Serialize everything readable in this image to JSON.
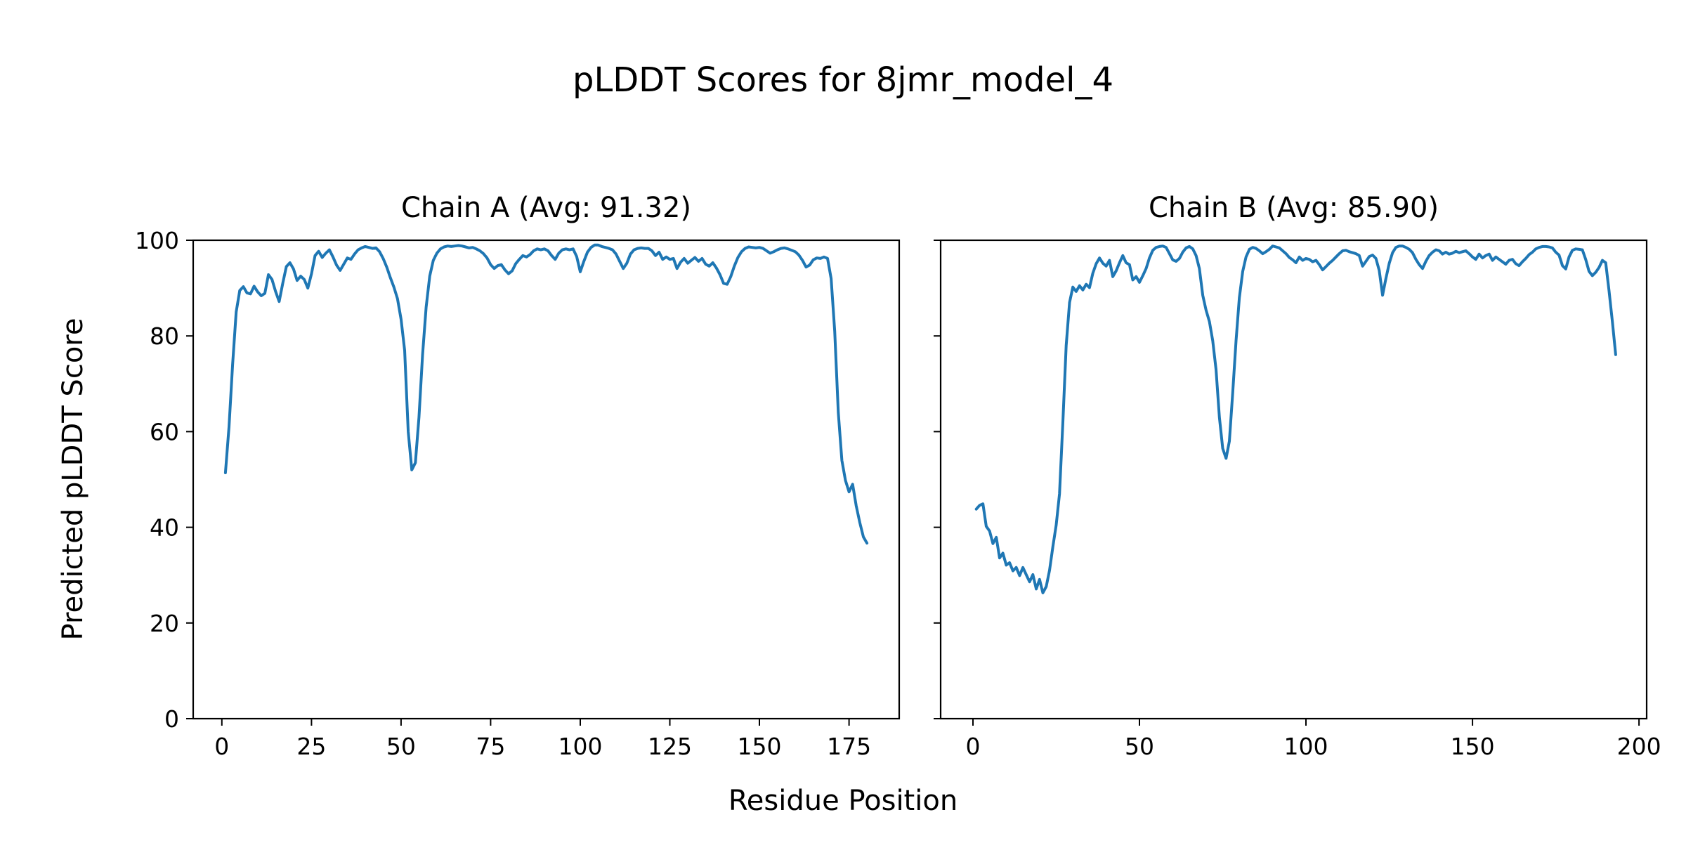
{
  "figure": {
    "title": "pLDDT Scores for 8jmr_model_4",
    "xlabel": "Residue Position",
    "ylabel": "Predicted pLDDT Score",
    "line_color": "#1f77b4",
    "spine_color": "#000000",
    "background": "#ffffff"
  },
  "chart_data": [
    {
      "type": "line",
      "title": "Chain A (Avg: 91.32)",
      "chain": "A",
      "avg": 91.32,
      "x_start": 1,
      "xlim": [
        -8,
        189
      ],
      "ylim": [
        0,
        100
      ],
      "xticks": [
        0,
        25,
        50,
        75,
        100,
        125,
        150,
        175
      ],
      "yticks": [
        0,
        20,
        40,
        60,
        80,
        100
      ],
      "show_ytick_labels": true,
      "grid": false,
      "values": [
        51.4,
        61,
        74,
        85,
        89.5,
        90.3,
        89,
        88.8,
        90.4,
        89.2,
        88.4,
        88.9,
        92.8,
        91.8,
        89.3,
        87.2,
        91,
        94.5,
        95.3,
        94,
        91.6,
        92.5,
        91.8,
        90,
        93,
        96.8,
        97.7,
        96.4,
        97.3,
        98,
        96.5,
        94.8,
        93.7,
        95,
        96.3,
        96,
        97.1,
        98,
        98.4,
        98.7,
        98.5,
        98.3,
        98.4,
        97.6,
        96.2,
        94.4,
        92.2,
        90.2,
        87.8,
        83.5,
        77,
        60,
        52,
        53.5,
        63,
        76,
        86,
        92.5,
        95.8,
        97.3,
        98.2,
        98.6,
        98.8,
        98.7,
        98.8,
        98.9,
        98.8,
        98.6,
        98.4,
        98.5,
        98.2,
        97.8,
        97.2,
        96.3,
        94.9,
        94.1,
        94.7,
        94.9,
        93.8,
        93,
        93.6,
        95.1,
        96,
        96.8,
        96.5,
        97,
        97.8,
        98.2,
        98,
        98.2,
        97.8,
        96.8,
        96,
        97.3,
        98,
        98.2,
        98,
        98.2,
        96.6,
        93.4,
        95.6,
        97.5,
        98.5,
        99,
        99,
        98.7,
        98.5,
        98.3,
        98,
        97.1,
        95.6,
        94.1,
        95.2,
        97.1,
        98,
        98.3,
        98.4,
        98.3,
        98.3,
        97.8,
        96.8,
        97.5,
        96,
        96.5,
        96,
        96.2,
        94.1,
        95.4,
        96.2,
        95.2,
        95.8,
        96.4,
        95.6,
        96.2,
        95,
        94.6,
        95.3,
        94.2,
        92.8,
        91,
        90.8,
        92.4,
        94.6,
        96.4,
        97.6,
        98.3,
        98.6,
        98.5,
        98.4,
        98.5,
        98.3,
        97.8,
        97.3,
        97.6,
        98,
        98.3,
        98.4,
        98.2,
        97.9,
        97.6,
        96.9,
        95.8,
        94.4,
        94.8,
        95.9,
        96.3,
        96.2,
        96.5,
        96.2,
        92,
        81,
        64,
        54,
        49.8,
        47.4,
        49,
        44.5,
        41,
        38,
        36.7
      ]
    },
    {
      "type": "line",
      "title": "Chain B (Avg: 85.90)",
      "chain": "B",
      "avg": 85.9,
      "x_start": 1,
      "xlim": [
        -9.7,
        202.3
      ],
      "ylim": [
        0,
        100
      ],
      "xticks": [
        0,
        50,
        100,
        150,
        200
      ],
      "yticks": [
        0,
        20,
        40,
        60,
        80,
        100
      ],
      "show_ytick_labels": false,
      "grid": false,
      "values": [
        43.8,
        44.6,
        44.9,
        40.2,
        39.2,
        36.6,
        37.9,
        33.6,
        34.6,
        32.1,
        32.6,
        30.9,
        31.6,
        29.9,
        31.6,
        30.1,
        28.6,
        30.1,
        27.1,
        29.1,
        26.3,
        27.6,
        31,
        36,
        40.5,
        47,
        62,
        78,
        87,
        90.2,
        89.3,
        90.5,
        89.6,
        90.8,
        90.1,
        93.1,
        95.1,
        96.3,
        95.2,
        94.6,
        95.8,
        92.4,
        93.6,
        95.3,
        96.8,
        95.3,
        94.9,
        91.7,
        92.4,
        91.2,
        92.6,
        94.1,
        96.3,
        97.9,
        98.5,
        98.7,
        98.8,
        98.5,
        97.2,
        95.9,
        95.6,
        96.2,
        97.5,
        98.4,
        98.7,
        98.2,
        96.8,
        94.1,
        88.5,
        85.4,
        83,
        79,
        73,
        63,
        56.5,
        54.4,
        58,
        68,
        79,
        88,
        93.5,
        96.5,
        98.1,
        98.5,
        98.3,
        97.8,
        97.2,
        97.6,
        98.1,
        98.8,
        98.6,
        98.4,
        97.8,
        97.2,
        96.4,
        95.9,
        95.3,
        96.5,
        95.8,
        96.2,
        96,
        95.5,
        95.8,
        94.9,
        93.8,
        94.5,
        95.2,
        95.8,
        96.5,
        97.2,
        97.8,
        97.9,
        97.6,
        97.4,
        97.2,
        96.8,
        94.6,
        95.6,
        96.6,
        96.9,
        96.2,
        93.7,
        88.5,
        92,
        95.2,
        97.4,
        98.5,
        98.8,
        98.8,
        98.5,
        98.1,
        97.4,
        96,
        94.9,
        94.1,
        95.6,
        96.8,
        97.5,
        98,
        97.8,
        97.1,
        97.5,
        97.1,
        97.3,
        97.7,
        97.4,
        97.6,
        97.8,
        97.2,
        96.5,
        96,
        97.1,
        96.3,
        96.8,
        97.1,
        95.8,
        96.5,
        96,
        95.5,
        95,
        95.8,
        96,
        95.1,
        94.7,
        95.5,
        96.2,
        97,
        97.5,
        98.2,
        98.5,
        98.7,
        98.7,
        98.6,
        98.4,
        97.5,
        96.9,
        94.7,
        94,
        96.5,
        97.9,
        98.2,
        98.1,
        98,
        96,
        93.5,
        92.6,
        93.3,
        94.3,
        95.8,
        95.3,
        89.5,
        83,
        76.1
      ]
    }
  ]
}
